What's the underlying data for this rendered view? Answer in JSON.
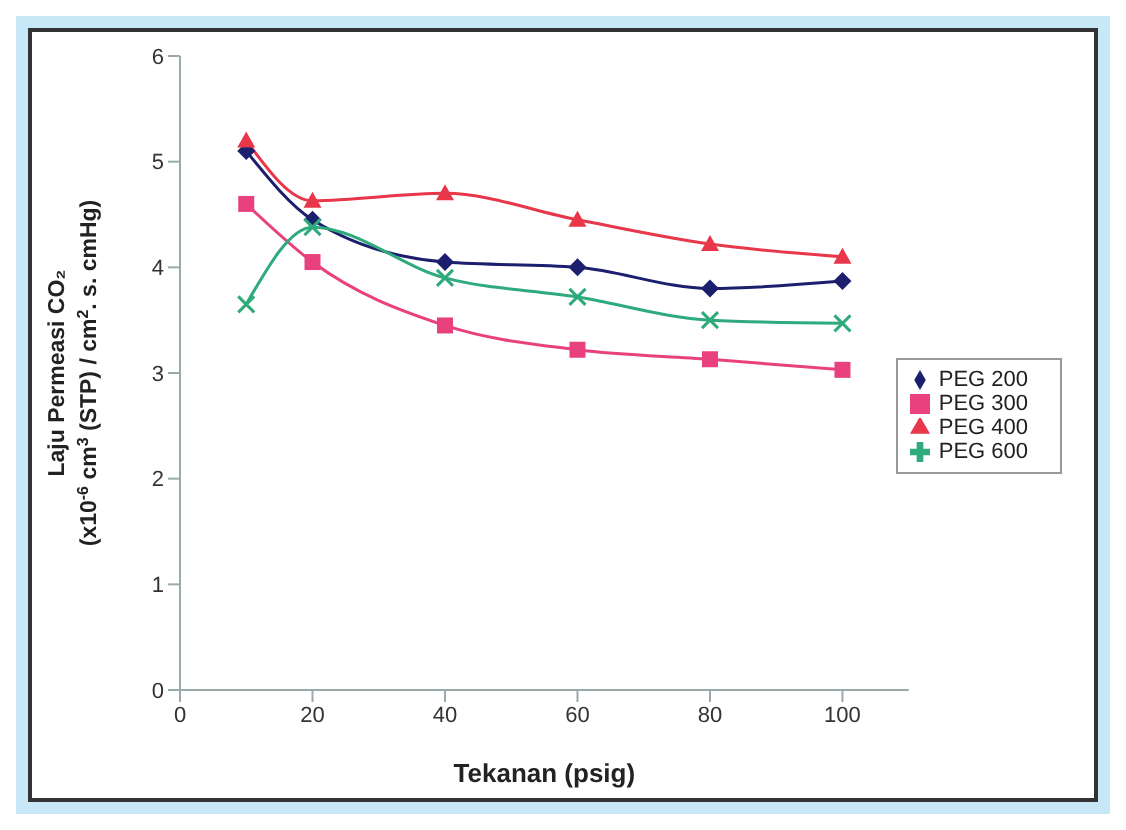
{
  "chart_data": {
    "type": "line",
    "xlabel": "Tekanan (psig)",
    "ylabel": "Laju Permeasi CO₂\n(x10$^{-6}$ cm$^{3}$ (STP) / cm$^{2}$. s. cmHg)",
    "x": [
      10,
      20,
      40,
      60,
      80,
      100
    ],
    "series": [
      {
        "name": "PEG 200",
        "color": "#1c1f6e",
        "marker": "diamond",
        "values": [
          5.1,
          4.45,
          4.05,
          4.0,
          3.8,
          3.87
        ]
      },
      {
        "name": "PEG 300",
        "color": "#e8417e",
        "marker": "square",
        "values": [
          4.6,
          4.05,
          3.45,
          3.22,
          3.13,
          3.03
        ]
      },
      {
        "name": "PEG 400",
        "color": "#e8374a",
        "marker": "triangle",
        "values": [
          5.2,
          4.63,
          4.7,
          4.45,
          4.22,
          4.1
        ]
      },
      {
        "name": "PEG 600",
        "color": "#2eaa7c",
        "marker": "cross",
        "values": [
          3.65,
          4.38,
          3.9,
          3.72,
          3.5,
          3.47
        ]
      }
    ],
    "xlim": [
      0,
      110
    ],
    "xticks": [
      0,
      20,
      40,
      60,
      80,
      100
    ],
    "ylim": [
      0,
      6
    ],
    "yticks": [
      0,
      1,
      2,
      3,
      4,
      5,
      6
    ],
    "grid": false,
    "legend": "right",
    "line_style": "solid"
  }
}
